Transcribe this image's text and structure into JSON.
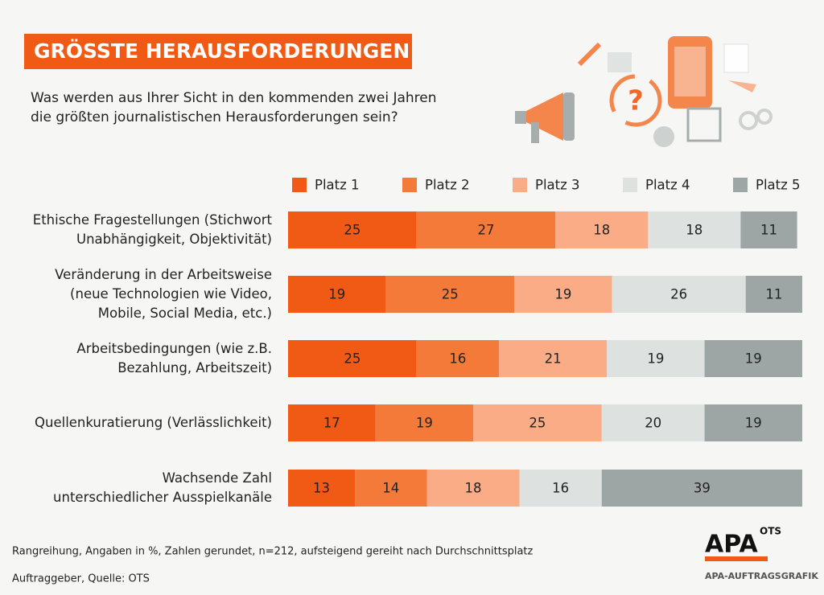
{
  "chart_data": {
    "type": "bar",
    "orientation": "horizontal",
    "stacked": true,
    "title": "GRÖSSTE HERAUSFORDERUNGEN",
    "subtitle": "Was werden aus Ihrer Sicht in den kommenden zwei Jahren\ndie größten journalistischen Herausforderungen sein?",
    "categories": [
      "Ethische Fragestellungen (Stichwort\nUnabhängigkeit, Objektivität)",
      "Veränderung in der Arbeitsweise\n(neue Technologien wie Video,\nMobile, Social Media, etc.)",
      "Arbeitsbedingungen (wie z.B.\nBezahlung, Arbeitszeit)",
      "Quellenkuratierung (Verlässlichkeit)",
      "Wachsende Zahl\nunterschiedlicher Ausspielkanäle"
    ],
    "series": [
      {
        "name": "Platz 1",
        "color": "#f05a14",
        "values": [
          25,
          19,
          25,
          17,
          13
        ]
      },
      {
        "name": "Platz 2",
        "color": "#f47a3a",
        "values": [
          27,
          25,
          16,
          19,
          14
        ]
      },
      {
        "name": "Platz 3",
        "color": "#f9ac86",
        "values": [
          18,
          19,
          21,
          25,
          18
        ]
      },
      {
        "name": "Platz 4",
        "color": "#dde1df",
        "values": [
          18,
          26,
          19,
          20,
          16
        ]
      },
      {
        "name": "Platz 5",
        "color": "#9ea6a5",
        "values": [
          11,
          11,
          19,
          19,
          39
        ]
      }
    ],
    "xlim": [
      0,
      100
    ],
    "legend": "top",
    "footnote": "Rangreihung, Angaben in %, Zahlen gerundet, n=212, aufsteigend gereiht nach Durchschnittsplatz",
    "source": "Auftraggeber, Quelle: OTS",
    "branding": [
      "APA",
      "OTS",
      "APA-AUFTRAGSGRAFIK"
    ]
  }
}
